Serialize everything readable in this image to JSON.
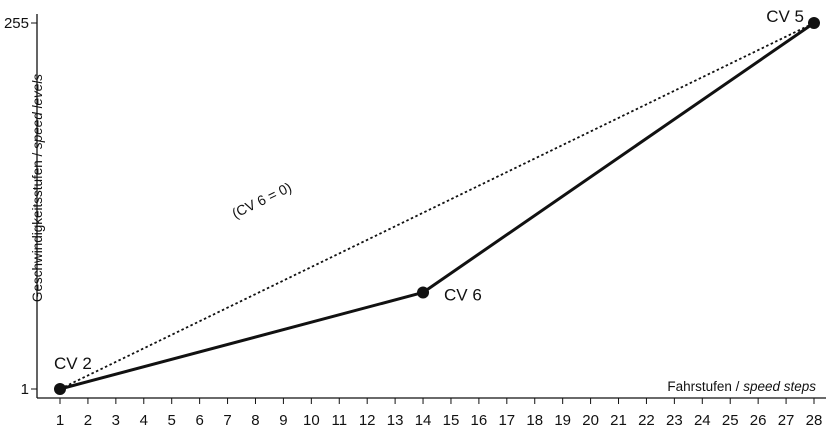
{
  "chart_data": {
    "type": "line",
    "x_ticks": [
      1,
      2,
      3,
      4,
      5,
      6,
      7,
      8,
      9,
      10,
      11,
      12,
      13,
      14,
      15,
      16,
      17,
      18,
      19,
      20,
      21,
      22,
      23,
      24,
      25,
      26,
      27,
      28
    ],
    "xlim": [
      1,
      28
    ],
    "y_ticks": [
      1,
      255
    ],
    "ylim": [
      1,
      255
    ],
    "xlabel": {
      "main": "Fahrstufen",
      "sep": " / ",
      "italic": "speed steps"
    },
    "ylabel": {
      "main": "Geschwindigkeitsstufen",
      "sep": " / ",
      "italic": "speed levels"
    },
    "series": [
      {
        "style": "solid",
        "points": [
          {
            "x": 1,
            "y": 1,
            "label": "CV 2"
          },
          {
            "x": 14,
            "y": 68,
            "label": "CV 6"
          },
          {
            "x": 28,
            "y": 255,
            "label": "CV 5"
          }
        ]
      },
      {
        "style": "dotted",
        "points": [
          {
            "x": 1,
            "y": 1
          },
          {
            "x": 28,
            "y": 255
          }
        ]
      }
    ],
    "annotations": [
      {
        "text": "(CV 6 = 0)",
        "x": 8.3,
        "y": 129
      }
    ],
    "grid": false
  }
}
